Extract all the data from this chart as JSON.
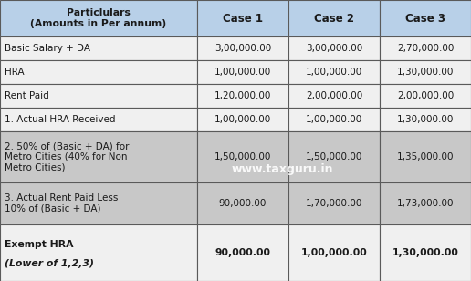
{
  "title_row": [
    "Particlulars\n(Amounts in Per annum)",
    "Case 1",
    "Case 2",
    "Case 3"
  ],
  "rows": [
    [
      "Basic Salary + DA",
      "3,00,000.00",
      "3,00,000.00",
      "2,70,000.00"
    ],
    [
      "HRA",
      "1,00,000.00",
      "1,00,000.00",
      "1,30,000.00"
    ],
    [
      "Rent Paid",
      "1,20,000.00",
      "2,00,000.00",
      "2,00,000.00"
    ],
    [
      "1. Actual HRA Received",
      "1,00,000.00",
      "1,00,000.00",
      "1,30,000.00"
    ],
    [
      "2. 50% of (Basic + DA) for\nMetro Cities (40% for Non\nMetro Cities)",
      "1,50,000.00",
      "1,50,000.00",
      "1,35,000.00"
    ],
    [
      "3. Actual Rent Paid Less\n10% of (Basic + DA)",
      "90,000.00",
      "1,70,000.00",
      "1,73,000.00"
    ],
    [
      "Exempt HRA\n(Lower of 1,2,3)",
      "90,000.00",
      "1,00,000.00",
      "1,30,000.00"
    ]
  ],
  "header_bg": "#b8d0e8",
  "row_bg_white": "#f0f0f0",
  "row_bg_gray": "#c8c8c8",
  "last_row_bg": "#f0f0f0",
  "border_color": "#5a5a5a",
  "watermark": "www.taxguru.in",
  "fig_width": 5.16,
  "fig_height": 3.08,
  "dpi": 100
}
